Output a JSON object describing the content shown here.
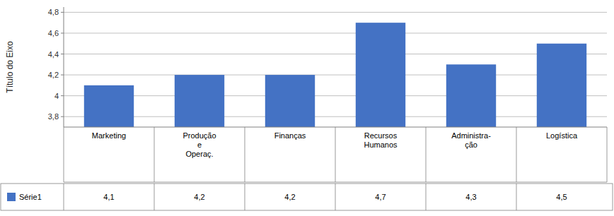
{
  "chart_data": {
    "type": "bar",
    "ylabel": "Título do Eixo",
    "categories": [
      "Marketing",
      "Produção\ne\nOperaç.",
      "Finanças",
      "Recursos\nHumanos",
      "Administra-\nção",
      "Logística"
    ],
    "series": [
      {
        "name": "Série1",
        "color": "#4472C4",
        "values": [
          4.1,
          4.2,
          4.2,
          4.7,
          4.3,
          4.5
        ],
        "value_labels": [
          "4,1",
          "4,2",
          "4,2",
          "4,7",
          "4,3",
          "4,5"
        ]
      }
    ],
    "ylim": [
      3.7,
      4.85
    ],
    "yticks": [
      {
        "value": 3.8,
        "label": "3,8"
      },
      4,
      {
        "value": 4.2,
        "label": "4,2"
      },
      {
        "value": 4.4,
        "label": "4,4"
      },
      {
        "value": 4.6,
        "label": "4,6"
      },
      {
        "value": 4.8,
        "label": "4,8"
      }
    ],
    "grid": true,
    "legend": "bottom",
    "data_labels": true
  }
}
